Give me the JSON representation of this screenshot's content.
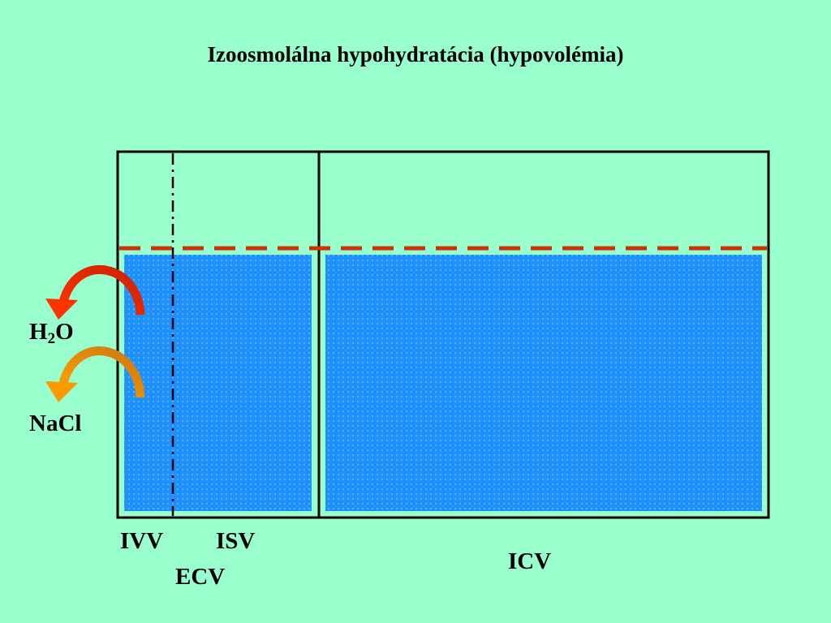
{
  "title": "Izoosmolálna hypohydratácia (hypovolémia)",
  "labels": {
    "ivv": "IVV",
    "isv": "ISV",
    "ecv": "ECV",
    "icv": "ICV",
    "water_main": "H",
    "water_sub": "2",
    "water_tail": "O",
    "salt": "NaCl"
  },
  "colors": {
    "background": "#99ffcc",
    "fluid": "#1e90ff",
    "dashed_level_line": "#cc3300",
    "arrow_water": "#ff3300",
    "arrow_salt": "#ff9900"
  }
}
